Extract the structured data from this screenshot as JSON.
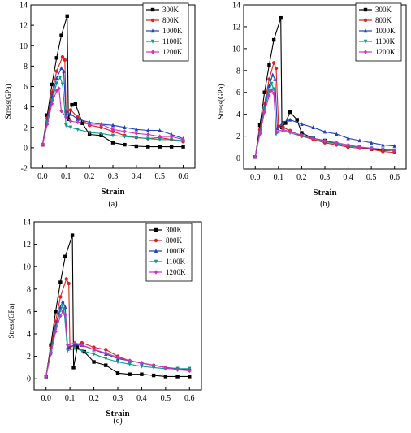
{
  "chart_data": [
    {
      "panel_label": "(a)",
      "type": "line",
      "xlabel": "Strain",
      "ylabel": "Stress(GPa)",
      "xlim": [
        -0.05,
        0.65
      ],
      "ylim": [
        -2,
        14
      ],
      "xticks": [
        "0.0",
        "0.1",
        "0.2",
        "0.3",
        "0.4",
        "0.5",
        "0.6"
      ],
      "yticks": [
        "-2",
        "0",
        "2",
        "4",
        "6",
        "8",
        "10",
        "12",
        "14"
      ],
      "legend_position": "top-right",
      "series": [
        {
          "name": "300K",
          "color": "#000000",
          "marker": "square",
          "x": [
            0,
            0.02,
            0.04,
            0.06,
            0.08,
            0.105,
            0.11,
            0.125,
            0.14,
            0.17,
            0.2,
            0.25,
            0.3,
            0.35,
            0.4,
            0.45,
            0.5,
            0.55,
            0.6
          ],
          "y": [
            0.3,
            3.2,
            6.2,
            8.8,
            11.0,
            12.9,
            2.8,
            4.2,
            4.3,
            2.4,
            1.3,
            1.2,
            0.5,
            0.3,
            0.15,
            0.1,
            0.1,
            0.1,
            0.1
          ]
        },
        {
          "name": "800K",
          "color": "#e02020",
          "marker": "circle",
          "x": [
            0,
            0.02,
            0.04,
            0.06,
            0.085,
            0.095,
            0.1,
            0.12,
            0.15,
            0.2,
            0.25,
            0.3,
            0.35,
            0.4,
            0.45,
            0.5,
            0.55,
            0.6
          ],
          "y": [
            0.3,
            2.9,
            5.4,
            7.5,
            8.9,
            8.6,
            3.5,
            3.7,
            3.0,
            2.2,
            2.0,
            1.6,
            1.2,
            1.0,
            0.9,
            1.0,
            0.8,
            0.6
          ]
        },
        {
          "name": "1000K",
          "color": "#2040c0",
          "marker": "triangle",
          "x": [
            0,
            0.02,
            0.04,
            0.06,
            0.08,
            0.09,
            0.1,
            0.12,
            0.15,
            0.2,
            0.25,
            0.3,
            0.35,
            0.4,
            0.45,
            0.5,
            0.55,
            0.6
          ],
          "y": [
            0.3,
            2.7,
            5.0,
            6.8,
            7.8,
            7.5,
            3.2,
            3.3,
            2.8,
            2.5,
            2.3,
            2.2,
            2.0,
            1.8,
            1.7,
            1.7,
            1.3,
            0.9
          ]
        },
        {
          "name": "1100K",
          "color": "#0a9a8a",
          "marker": "triangle-down",
          "x": [
            0,
            0.02,
            0.04,
            0.06,
            0.075,
            0.085,
            0.1,
            0.12,
            0.15,
            0.2,
            0.25,
            0.3,
            0.35,
            0.4,
            0.45,
            0.5,
            0.55,
            0.6
          ],
          "y": [
            0.3,
            2.5,
            4.6,
            6.3,
            6.9,
            6.2,
            2.2,
            2.0,
            1.8,
            1.5,
            1.4,
            1.2,
            1.1,
            1.0,
            0.9,
            0.8,
            0.8,
            0.7
          ]
        },
        {
          "name": "1200K",
          "color": "#d030c0",
          "marker": "diamond",
          "x": [
            0,
            0.02,
            0.04,
            0.06,
            0.07,
            0.08,
            0.1,
            0.12,
            0.15,
            0.2,
            0.25,
            0.3,
            0.35,
            0.4,
            0.45,
            0.5,
            0.55,
            0.6
          ],
          "y": [
            0.3,
            2.3,
            4.3,
            5.6,
            5.8,
            3.6,
            3.0,
            2.6,
            2.5,
            2.3,
            2.3,
            1.8,
            1.6,
            1.4,
            1.3,
            1.1,
            1.1,
            0.8
          ]
        }
      ]
    },
    {
      "panel_label": "(b)",
      "type": "line",
      "xlabel": "Strain",
      "ylabel": "Stress(GPa)",
      "xlim": [
        -0.05,
        0.65
      ],
      "ylim": [
        -1,
        14
      ],
      "xticks": [
        "0.0",
        "0.1",
        "0.2",
        "0.3",
        "0.4",
        "0.5",
        "0.6"
      ],
      "yticks": [
        "0",
        "2",
        "4",
        "6",
        "8",
        "10",
        "12",
        "14"
      ],
      "legend_position": "top-right",
      "series": [
        {
          "name": "300K",
          "color": "#000000",
          "marker": "square",
          "x": [
            0,
            0.02,
            0.04,
            0.06,
            0.08,
            0.11,
            0.115,
            0.13,
            0.15,
            0.18,
            0.2,
            0.25,
            0.3,
            0.35,
            0.4,
            0.45,
            0.5,
            0.55,
            0.6
          ],
          "y": [
            0.1,
            3.0,
            6.0,
            8.5,
            10.8,
            12.8,
            2.8,
            3.2,
            4.2,
            3.5,
            2.3,
            1.8,
            1.6,
            1.3,
            1.1,
            1.0,
            0.8,
            0.7,
            0.7
          ]
        },
        {
          "name": "800K",
          "color": "#e02020",
          "marker": "circle",
          "x": [
            0,
            0.02,
            0.04,
            0.06,
            0.08,
            0.09,
            0.1,
            0.12,
            0.15,
            0.2,
            0.25,
            0.3,
            0.35,
            0.4,
            0.45,
            0.5,
            0.55,
            0.6
          ],
          "y": [
            0.1,
            2.6,
            5.0,
            7.2,
            8.7,
            8.2,
            2.9,
            2.8,
            2.5,
            2.0,
            1.7,
            1.4,
            1.2,
            1.0,
            0.9,
            0.8,
            0.6,
            0.5
          ]
        },
        {
          "name": "1000K",
          "color": "#2040c0",
          "marker": "triangle",
          "x": [
            0,
            0.02,
            0.04,
            0.06,
            0.075,
            0.085,
            0.095,
            0.12,
            0.15,
            0.2,
            0.25,
            0.3,
            0.35,
            0.4,
            0.45,
            0.5,
            0.55,
            0.6
          ],
          "y": [
            0.1,
            2.4,
            4.7,
            6.6,
            7.6,
            7.2,
            2.7,
            3.3,
            3.5,
            3.1,
            2.8,
            2.4,
            2.2,
            1.8,
            1.6,
            1.4,
            1.2,
            1.1
          ]
        },
        {
          "name": "1100K",
          "color": "#0a9a8a",
          "marker": "triangle-down",
          "x": [
            0,
            0.02,
            0.04,
            0.06,
            0.07,
            0.08,
            0.09,
            0.12,
            0.15,
            0.2,
            0.25,
            0.3,
            0.35,
            0.4,
            0.45,
            0.5,
            0.55,
            0.6
          ],
          "y": [
            0.1,
            2.3,
            4.5,
            6.1,
            6.8,
            6.3,
            2.2,
            2.5,
            2.3,
            2.0,
            1.8,
            1.5,
            1.3,
            1.1,
            1.0,
            0.9,
            0.8,
            0.7
          ]
        },
        {
          "name": "1200K",
          "color": "#d030c0",
          "marker": "diamond",
          "x": [
            0,
            0.02,
            0.04,
            0.06,
            0.07,
            0.08,
            0.09,
            0.12,
            0.15,
            0.2,
            0.25,
            0.3,
            0.35,
            0.4,
            0.45,
            0.5,
            0.55,
            0.6
          ],
          "y": [
            0.1,
            2.2,
            4.2,
            5.7,
            6.2,
            5.9,
            2.4,
            2.6,
            2.4,
            2.1,
            1.8,
            1.6,
            1.4,
            1.2,
            1.0,
            0.9,
            0.8,
            0.7
          ]
        }
      ]
    },
    {
      "panel_label": "(c)",
      "type": "line",
      "xlabel": "Strain",
      "ylabel": "Stress(GPa)",
      "xlim": [
        -0.05,
        0.65
      ],
      "ylim": [
        -1,
        14
      ],
      "xticks": [
        "0.0",
        "0.1",
        "0.2",
        "0.3",
        "0.4",
        "0.5",
        "0.6"
      ],
      "yticks": [
        "0",
        "2",
        "4",
        "6",
        "8",
        "10",
        "12",
        "14"
      ],
      "legend_position": "top-right",
      "series": [
        {
          "name": "300K",
          "color": "#000000",
          "marker": "square",
          "x": [
            0,
            0.02,
            0.04,
            0.06,
            0.08,
            0.11,
            0.115,
            0.13,
            0.16,
            0.2,
            0.25,
            0.3,
            0.35,
            0.4,
            0.45,
            0.5,
            0.55,
            0.6
          ],
          "y": [
            0.2,
            3.0,
            6.0,
            8.6,
            10.9,
            12.8,
            1.0,
            2.8,
            2.4,
            1.5,
            1.2,
            0.5,
            0.4,
            0.4,
            0.3,
            0.2,
            0.2,
            0.2
          ]
        },
        {
          "name": "800K",
          "color": "#e02020",
          "marker": "circle",
          "x": [
            0,
            0.02,
            0.04,
            0.06,
            0.085,
            0.095,
            0.1,
            0.12,
            0.15,
            0.2,
            0.25,
            0.3,
            0.35,
            0.4,
            0.45,
            0.5,
            0.55,
            0.6
          ],
          "y": [
            0.2,
            2.7,
            5.1,
            7.3,
            8.9,
            8.5,
            2.8,
            3.0,
            3.2,
            2.8,
            2.6,
            2.0,
            1.6,
            1.4,
            1.2,
            1.0,
            0.9,
            0.8
          ]
        },
        {
          "name": "1000K",
          "color": "#2040c0",
          "marker": "triangle",
          "x": [
            0,
            0.02,
            0.04,
            0.06,
            0.07,
            0.08,
            0.09,
            0.12,
            0.15,
            0.2,
            0.25,
            0.3,
            0.35,
            0.4,
            0.45,
            0.5,
            0.55,
            0.6
          ],
          "y": [
            0.2,
            2.5,
            4.7,
            6.4,
            6.9,
            6.4,
            2.8,
            3.0,
            3.0,
            2.6,
            2.2,
            1.8,
            1.6,
            1.4,
            1.2,
            1.0,
            0.9,
            0.8
          ]
        },
        {
          "name": "1100K",
          "color": "#0a9a8a",
          "marker": "triangle-down",
          "x": [
            0,
            0.02,
            0.04,
            0.06,
            0.07,
            0.075,
            0.09,
            0.12,
            0.15,
            0.2,
            0.25,
            0.3,
            0.35,
            0.4,
            0.45,
            0.5,
            0.55,
            0.6
          ],
          "y": [
            0.2,
            2.4,
            4.5,
            6.1,
            6.5,
            6.2,
            2.5,
            2.7,
            2.5,
            2.2,
            1.8,
            1.5,
            1.3,
            1.1,
            1.0,
            0.9,
            0.9,
            0.9
          ]
        },
        {
          "name": "1200K",
          "color": "#d030c0",
          "marker": "diamond",
          "x": [
            0,
            0.02,
            0.04,
            0.06,
            0.07,
            0.08,
            0.09,
            0.12,
            0.15,
            0.2,
            0.25,
            0.3,
            0.35,
            0.4,
            0.45,
            0.5,
            0.55,
            0.6
          ],
          "y": [
            0.2,
            2.2,
            4.2,
            5.6,
            6.0,
            5.7,
            3.0,
            3.2,
            3.0,
            2.6,
            2.3,
            1.9,
            1.6,
            1.4,
            1.2,
            1.0,
            0.8,
            0.7
          ]
        }
      ]
    }
  ]
}
